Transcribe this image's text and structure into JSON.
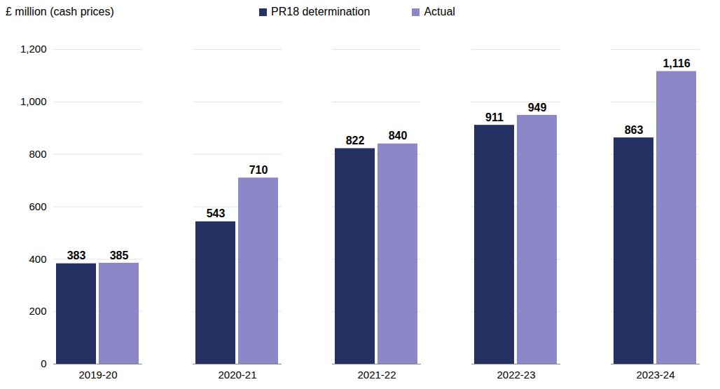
{
  "chart_data": {
    "type": "bar",
    "y_label": "£ million (cash prices)",
    "categories": [
      "2019-20",
      "2020-21",
      "2021-22",
      "2022-23",
      "2023-24"
    ],
    "series": [
      {
        "name": "PR18 determination",
        "color": "#253163",
        "values": [
          383,
          543,
          822,
          911,
          863
        ]
      },
      {
        "name": "Actual",
        "color": "#8b87c9",
        "values": [
          385,
          710,
          840,
          949,
          1116
        ],
        "value_labels": [
          "385",
          "710",
          "840",
          "949",
          "1,116"
        ]
      }
    ],
    "ylim": [
      0,
      1200
    ],
    "yticks": [
      0,
      200,
      400,
      600,
      800,
      {
        "value": 1000,
        "label": "1,000"
      },
      {
        "value": 1200,
        "label": "1,200"
      }
    ],
    "grid": true,
    "legend": "top",
    "data_labels": true
  }
}
